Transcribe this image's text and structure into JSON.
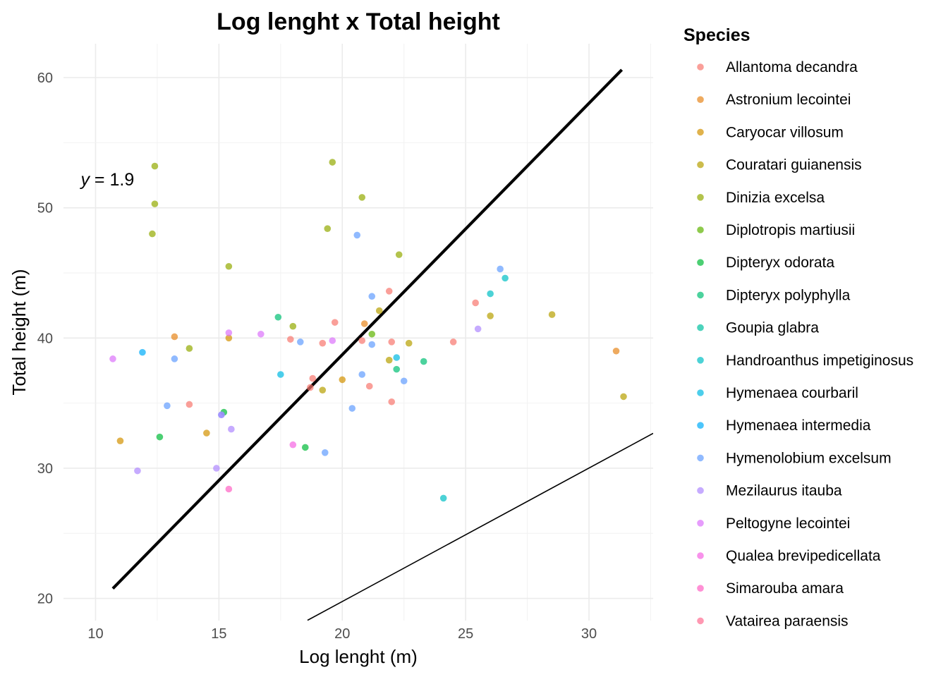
{
  "chart_data": {
    "type": "scatter",
    "title": "Log lenght x Total height",
    "xlabel": "Log lenght (m)",
    "ylabel": "Total height (m)",
    "xlim": [
      8.7,
      32.6
    ],
    "ylim": [
      18.3,
      62.6
    ],
    "x_ticks": [
      10,
      15,
      20,
      25,
      30
    ],
    "y_ticks": [
      20,
      30,
      40,
      50,
      60
    ],
    "grid": true,
    "legend": {
      "title": "Species",
      "position": "right"
    },
    "annotation": {
      "var": "y",
      "text": " = 1.9",
      "x": 9.4,
      "y": 52.2
    },
    "lines": [
      {
        "name": "fit-line-thick",
        "x": [
          10.7,
          31.33
        ],
        "y": [
          20.76,
          60.6
        ],
        "color": "#000000"
      },
      {
        "name": "fit-line-thin",
        "x": [
          18.59,
          32.6
        ],
        "y": [
          18.32,
          32.68
        ],
        "color": "#000000"
      }
    ],
    "series": [
      {
        "name": "Allantoma decandra",
        "color": "#F8766D",
        "points": [
          [
            13.8,
            34.9
          ],
          [
            17.9,
            39.9
          ],
          [
            18.8,
            36.9
          ],
          [
            18.7,
            36.2
          ],
          [
            19.2,
            39.6
          ],
          [
            19.7,
            41.2
          ],
          [
            20.8,
            39.8
          ],
          [
            21.1,
            36.3
          ],
          [
            21.9,
            43.6
          ],
          [
            22.0,
            39.7
          ],
          [
            22.0,
            35.1
          ],
          [
            24.5,
            39.7
          ],
          [
            25.4,
            42.7
          ]
        ]
      },
      {
        "name": "Astronium lecointei",
        "color": "#E7861B",
        "points": [
          [
            13.2,
            40.1
          ],
          [
            20.9,
            41.1
          ],
          [
            31.1,
            39.0
          ]
        ]
      },
      {
        "name": "Caryocar villosum",
        "color": "#D39200",
        "points": [
          [
            11.0,
            32.1
          ],
          [
            14.5,
            32.7
          ],
          [
            15.4,
            40.0
          ],
          [
            20.0,
            36.8
          ]
        ]
      },
      {
        "name": "Couratari guianensis",
        "color": "#B79F00",
        "points": [
          [
            19.2,
            36.0
          ],
          [
            21.5,
            42.1
          ],
          [
            21.9,
            38.3
          ],
          [
            22.7,
            39.6
          ],
          [
            26.0,
            41.7
          ],
          [
            28.5,
            41.8
          ],
          [
            31.4,
            35.5
          ]
        ]
      },
      {
        "name": "Dinizia excelsa",
        "color": "#93AA00",
        "points": [
          [
            12.4,
            53.2
          ],
          [
            12.4,
            50.3
          ],
          [
            12.3,
            48.0
          ],
          [
            13.8,
            39.2
          ],
          [
            15.4,
            45.5
          ],
          [
            18.0,
            40.9
          ],
          [
            19.4,
            48.4
          ],
          [
            19.6,
            53.5
          ],
          [
            20.8,
            50.8
          ],
          [
            22.3,
            46.4
          ]
        ]
      },
      {
        "name": "Diplotropis martiusii",
        "color": "#5EB300",
        "points": [
          [
            21.2,
            40.3
          ]
        ]
      },
      {
        "name": "Dipteryx odorata",
        "color": "#00BA38",
        "points": [
          [
            12.6,
            32.4
          ],
          [
            15.2,
            34.3
          ],
          [
            18.5,
            31.6
          ]
        ]
      },
      {
        "name": "Dipteryx polyphylla",
        "color": "#00BF74",
        "points": [
          [
            17.4,
            41.6
          ],
          [
            22.2,
            37.6
          ],
          [
            23.3,
            38.2
          ]
        ]
      },
      {
        "name": "Goupia glabra",
        "color": "#00C19F",
        "points": []
      },
      {
        "name": "Handroanthus impetiginosus",
        "color": "#00BFC4",
        "points": [
          [
            24.1,
            27.7
          ],
          [
            26.0,
            43.4
          ],
          [
            26.6,
            44.6
          ]
        ]
      },
      {
        "name": "Hymenaea courbaril",
        "color": "#00B9E3",
        "points": [
          [
            17.5,
            37.2
          ],
          [
            22.2,
            38.5
          ]
        ]
      },
      {
        "name": "Hymenaea intermedia",
        "color": "#00ADFA",
        "points": [
          [
            11.9,
            38.9
          ]
        ]
      },
      {
        "name": "Hymenolobium excelsum",
        "color": "#619CFF",
        "points": [
          [
            12.9,
            34.8
          ],
          [
            13.2,
            38.4
          ],
          [
            15.1,
            34.1
          ],
          [
            18.3,
            39.7
          ],
          [
            19.3,
            31.2
          ],
          [
            20.4,
            34.6
          ],
          [
            20.6,
            47.9
          ],
          [
            20.8,
            37.2
          ],
          [
            21.2,
            43.2
          ],
          [
            21.2,
            39.5
          ],
          [
            22.5,
            36.7
          ],
          [
            26.4,
            45.3
          ]
        ]
      },
      {
        "name": "Mezilaurus itauba",
        "color": "#AE87FF",
        "points": [
          [
            11.7,
            29.8
          ],
          [
            14.9,
            30.0
          ],
          [
            15.1,
            34.1
          ],
          [
            15.5,
            33.0
          ],
          [
            25.5,
            40.7
          ]
        ]
      },
      {
        "name": "Peltogyne lecointei",
        "color": "#DB72FB",
        "points": [
          [
            10.7,
            38.4
          ],
          [
            15.4,
            40.4
          ],
          [
            16.7,
            40.3
          ],
          [
            19.6,
            39.8
          ]
        ]
      },
      {
        "name": "Qualea brevipedicellata",
        "color": "#F564E3",
        "points": [
          [
            18.0,
            31.8
          ]
        ]
      },
      {
        "name": "Simarouba amara",
        "color": "#FF61C3",
        "points": [
          [
            15.4,
            28.4
          ]
        ]
      },
      {
        "name": "Vatairea paraensis",
        "color": "#FF6C91",
        "points": []
      }
    ]
  }
}
